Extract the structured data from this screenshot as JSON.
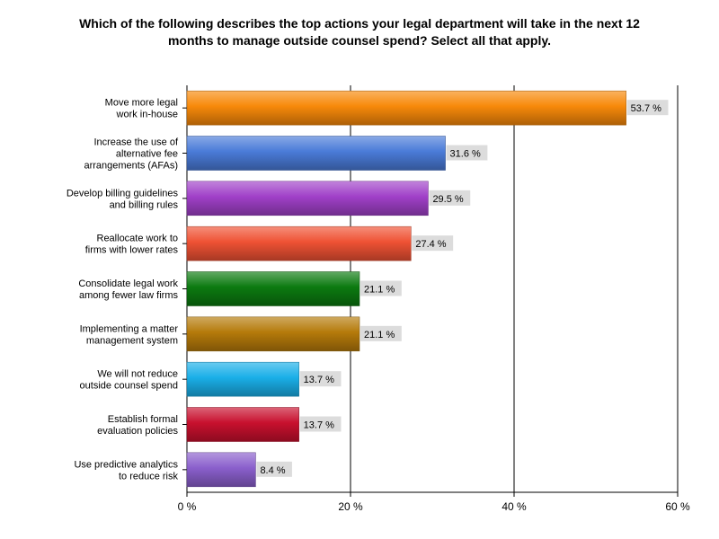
{
  "chart_data": {
    "type": "bar",
    "orientation": "horizontal",
    "title": "Which of the following describes the top actions your legal department will take in the next 12\nmonths to manage outside counsel spend? Select all that apply.",
    "categories": [
      [
        "Move more legal",
        "work in-house"
      ],
      [
        "Increase the use of",
        "alternative fee",
        "arrangements (AFAs)"
      ],
      [
        "Develop billing guidelines",
        "and billing rules"
      ],
      [
        "Reallocate work to",
        "firms with lower rates"
      ],
      [
        "Consolidate legal work",
        "among fewer law firms"
      ],
      [
        "Implementing a matter",
        "management system"
      ],
      [
        "We will not reduce",
        "outside counsel spend"
      ],
      [
        "Establish formal",
        "evaluation policies"
      ],
      [
        "Use predictive analytics",
        "to reduce risk"
      ]
    ],
    "values": [
      53.7,
      31.6,
      29.5,
      27.4,
      21.1,
      21.1,
      13.7,
      13.7,
      8.4
    ],
    "value_labels": [
      "53.7 %",
      "31.6 %",
      "29.5 %",
      "27.4 %",
      "21.1 %",
      "21.1 %",
      "13.7 %",
      "13.7 %",
      "8.4 %"
    ],
    "colors": [
      "#f7890a",
      "#4a7bd8",
      "#a040c8",
      "#ef5234",
      "#0c7a10",
      "#b57a0a",
      "#1aafe8",
      "#c8102e",
      "#8a5fcc"
    ],
    "xlim": [
      0,
      60
    ],
    "xticks": [
      0,
      20,
      40,
      60
    ],
    "xtick_labels": [
      "0 %",
      "20 %",
      "40 %",
      "60 %"
    ],
    "grid": true
  }
}
